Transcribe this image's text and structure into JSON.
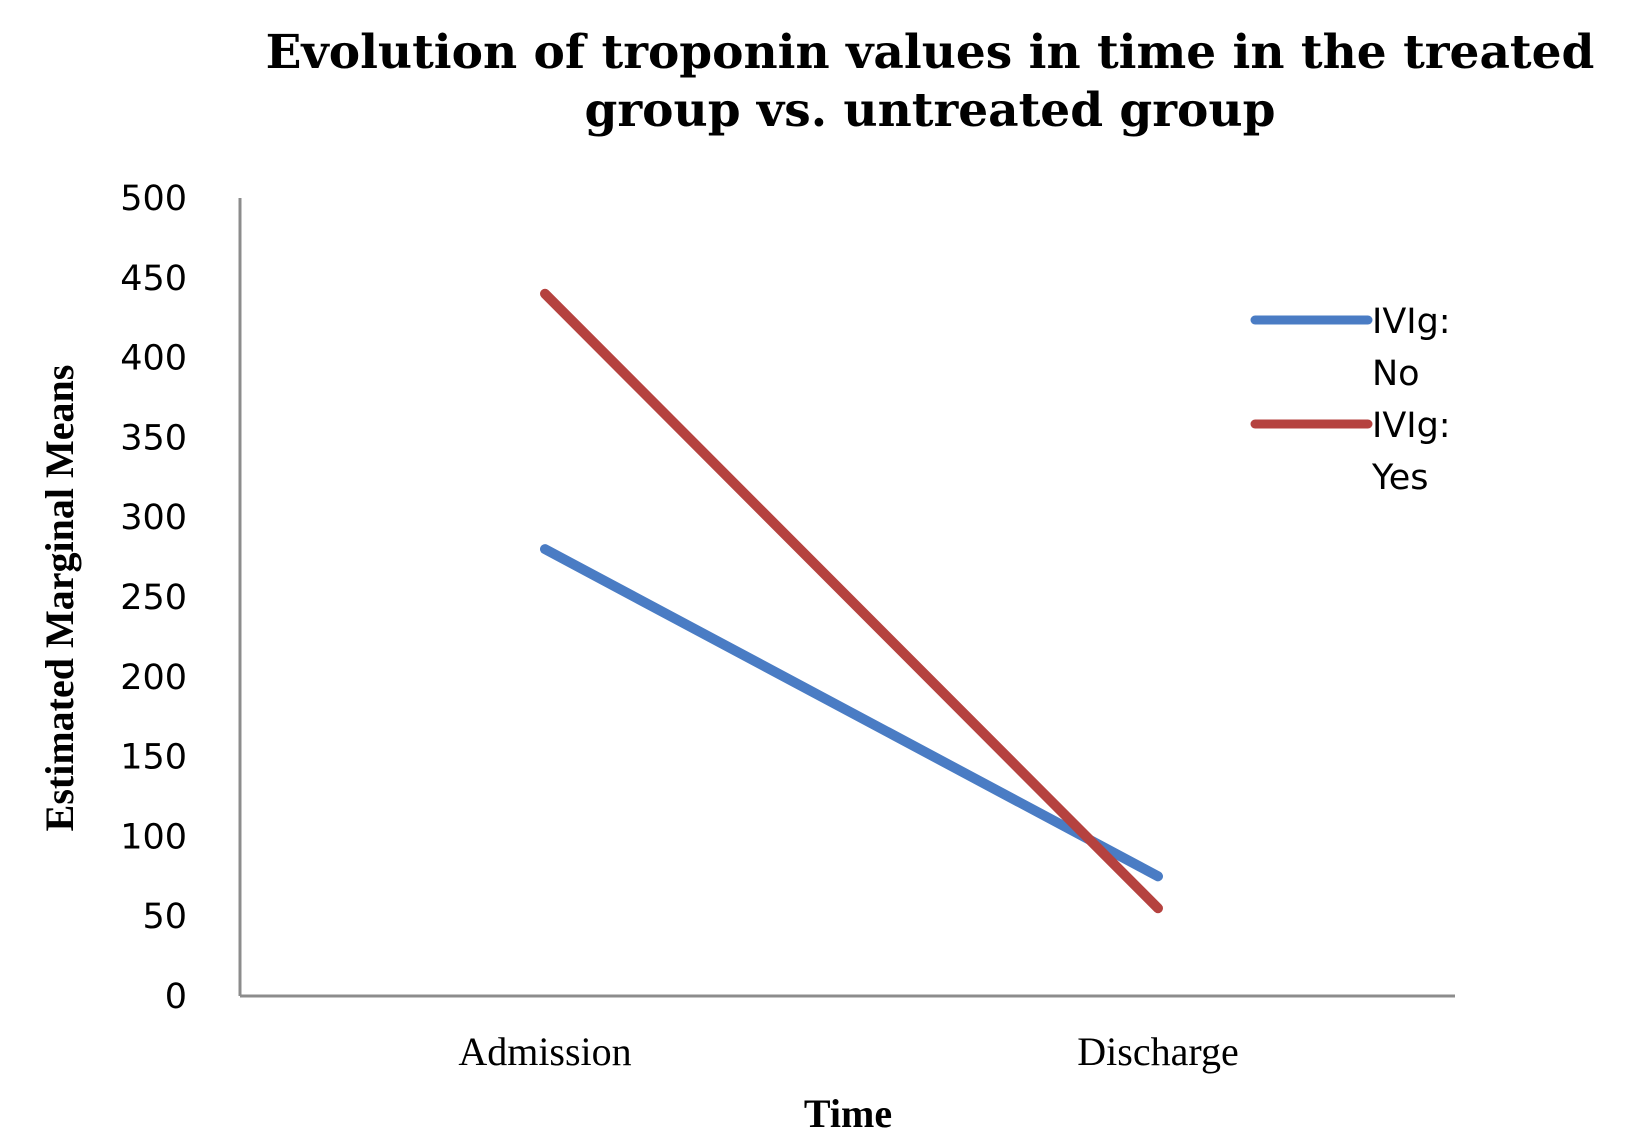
{
  "chart_data": {
    "type": "line",
    "title_lines": [
      "Evolution of troponin values in time in the treated",
      "group vs. untreated group"
    ],
    "xlabel": "Time",
    "ylabel": "Estimated Marginal Means",
    "categories": [
      "Admission",
      "Discharge"
    ],
    "ylim": [
      0,
      500
    ],
    "yticks": [
      0,
      50,
      100,
      150,
      200,
      250,
      300,
      350,
      400,
      450,
      500
    ],
    "grid": false,
    "legend_position": "right",
    "series": [
      {
        "name": "IVIg: No",
        "legend_lines": [
          "IVIg:",
          "No"
        ],
        "color": "#4a7cc4",
        "values": [
          280,
          75
        ]
      },
      {
        "name": "IVIg: Yes",
        "legend_lines": [
          "IVIg:",
          "Yes"
        ],
        "color": "#b5423f",
        "values": [
          440,
          55
        ]
      }
    ]
  }
}
